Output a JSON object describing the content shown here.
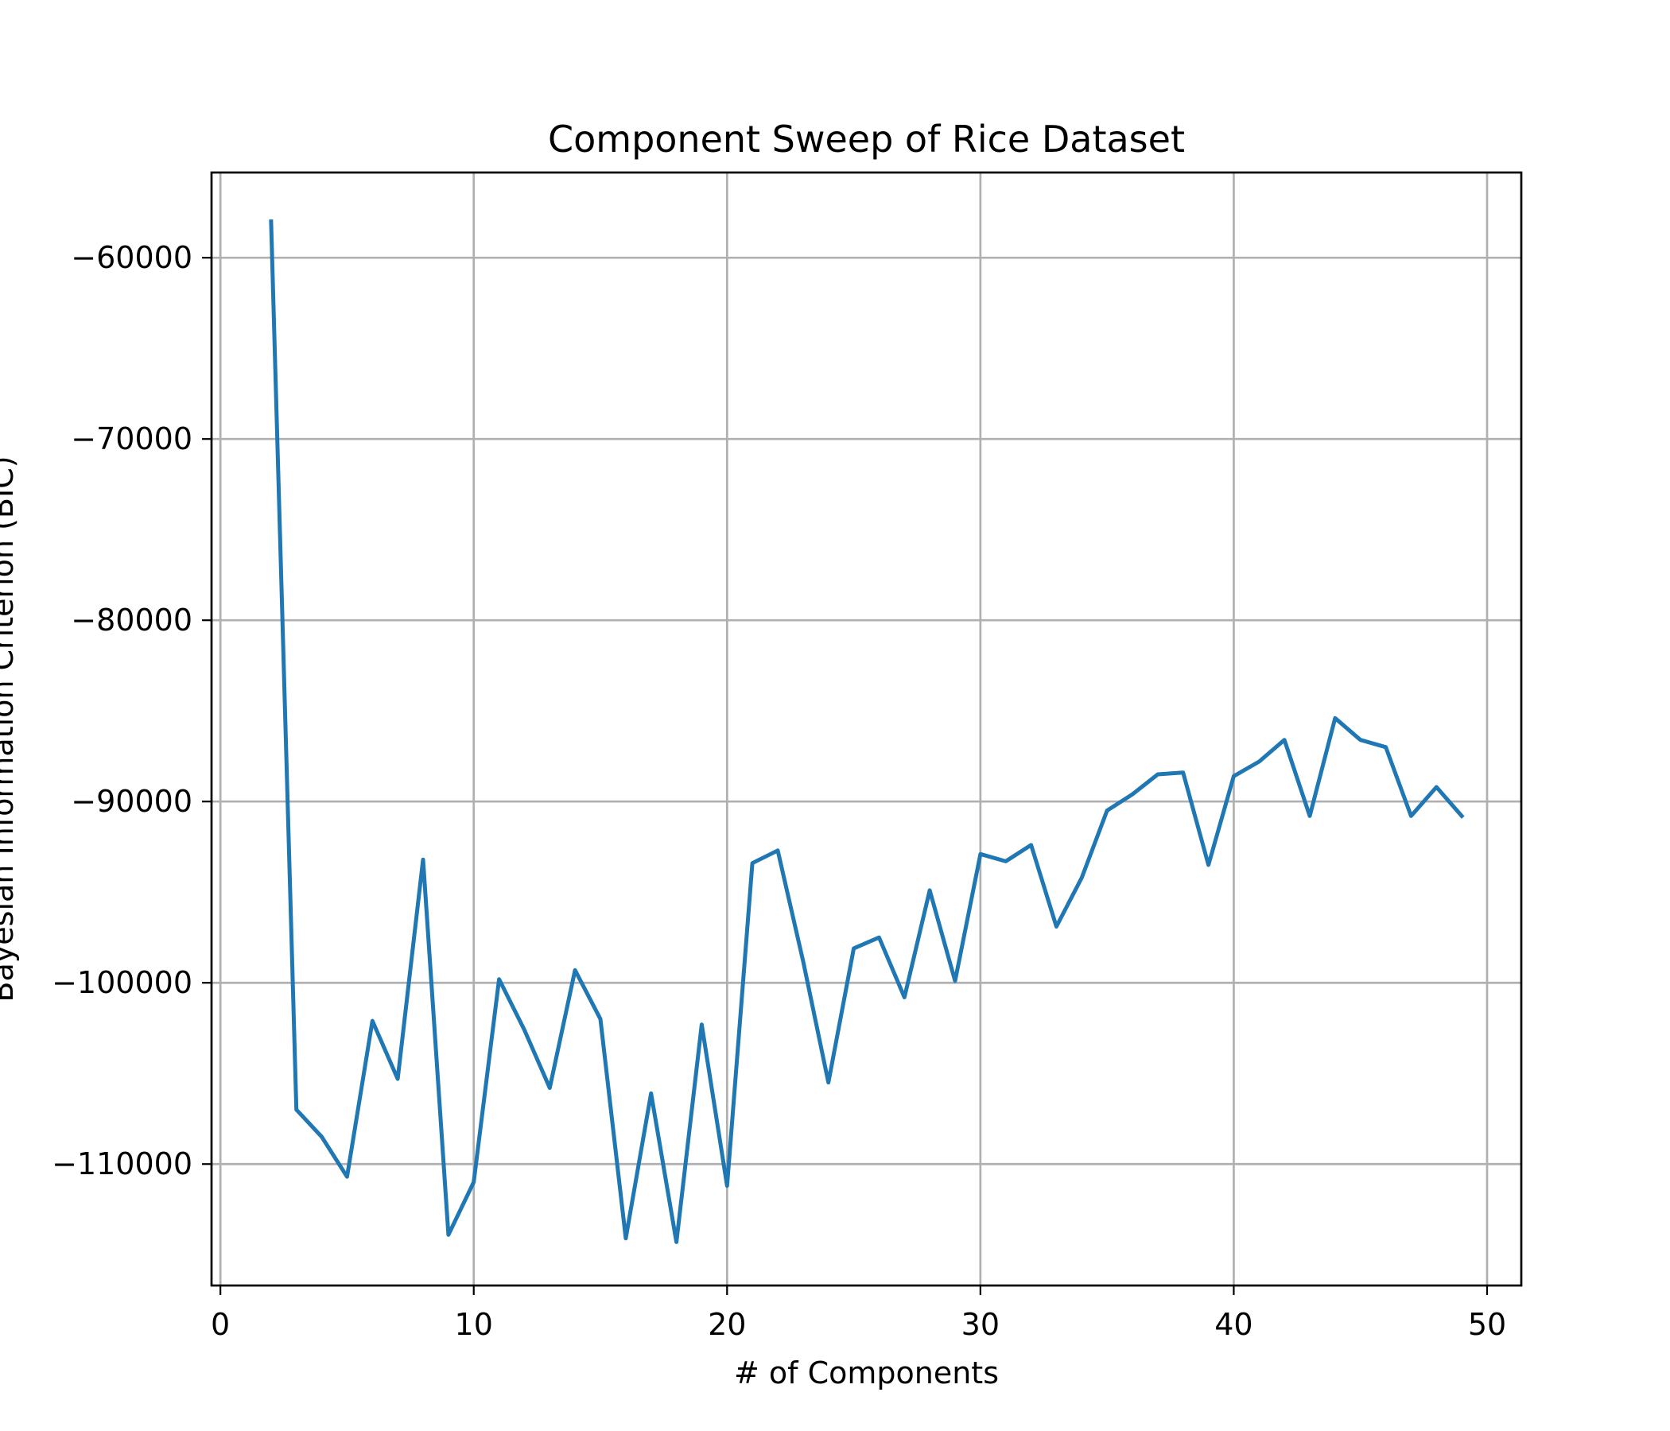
{
  "chart_data": {
    "type": "line",
    "title": "Component Sweep of Rice Dataset",
    "xlabel": "# of Components",
    "ylabel": "Bayesian Information Criterion (BIC)",
    "xlim": [
      -0.35,
      51.35
    ],
    "ylim": [
      -116700,
      -55300
    ],
    "x_ticks": [
      0,
      10,
      20,
      30,
      40,
      50
    ],
    "x_tick_labels": [
      "0",
      "10",
      "20",
      "30",
      "40",
      "50"
    ],
    "y_ticks": [
      -60000,
      -70000,
      -80000,
      -90000,
      -100000,
      -110000
    ],
    "y_tick_labels": [
      "−60000",
      "−70000",
      "−80000",
      "−90000",
      "−100000",
      "−110000"
    ],
    "grid": true,
    "series": [
      {
        "color": "#1f77b4",
        "x": [
          2,
          3,
          4,
          5,
          6,
          7,
          8,
          9,
          10,
          11,
          12,
          13,
          14,
          15,
          16,
          17,
          18,
          19,
          20,
          21,
          22,
          23,
          24,
          25,
          26,
          27,
          28,
          29,
          30,
          31,
          32,
          33,
          34,
          35,
          36,
          37,
          38,
          39,
          40,
          41,
          42,
          43,
          44,
          45,
          46,
          47,
          48,
          49
        ],
        "values": [
          -58000,
          -107000,
          -108500,
          -110700,
          -102100,
          -105300,
          -93200,
          -113900,
          -111000,
          -99800,
          -102600,
          -105800,
          -99300,
          -102000,
          -114100,
          -106100,
          -114300,
          -102300,
          -111200,
          -93400,
          -92700,
          -98800,
          -105500,
          -98100,
          -97500,
          -100800,
          -94900,
          -99900,
          -92900,
          -93300,
          -92400,
          -96900,
          -94200,
          -90500,
          -89600,
          -88500,
          -88400,
          -93500,
          -88600,
          -87800,
          -86600,
          -90800,
          -85400,
          -86600,
          -87000,
          -90800,
          -89200,
          -90800
        ]
      }
    ]
  }
}
